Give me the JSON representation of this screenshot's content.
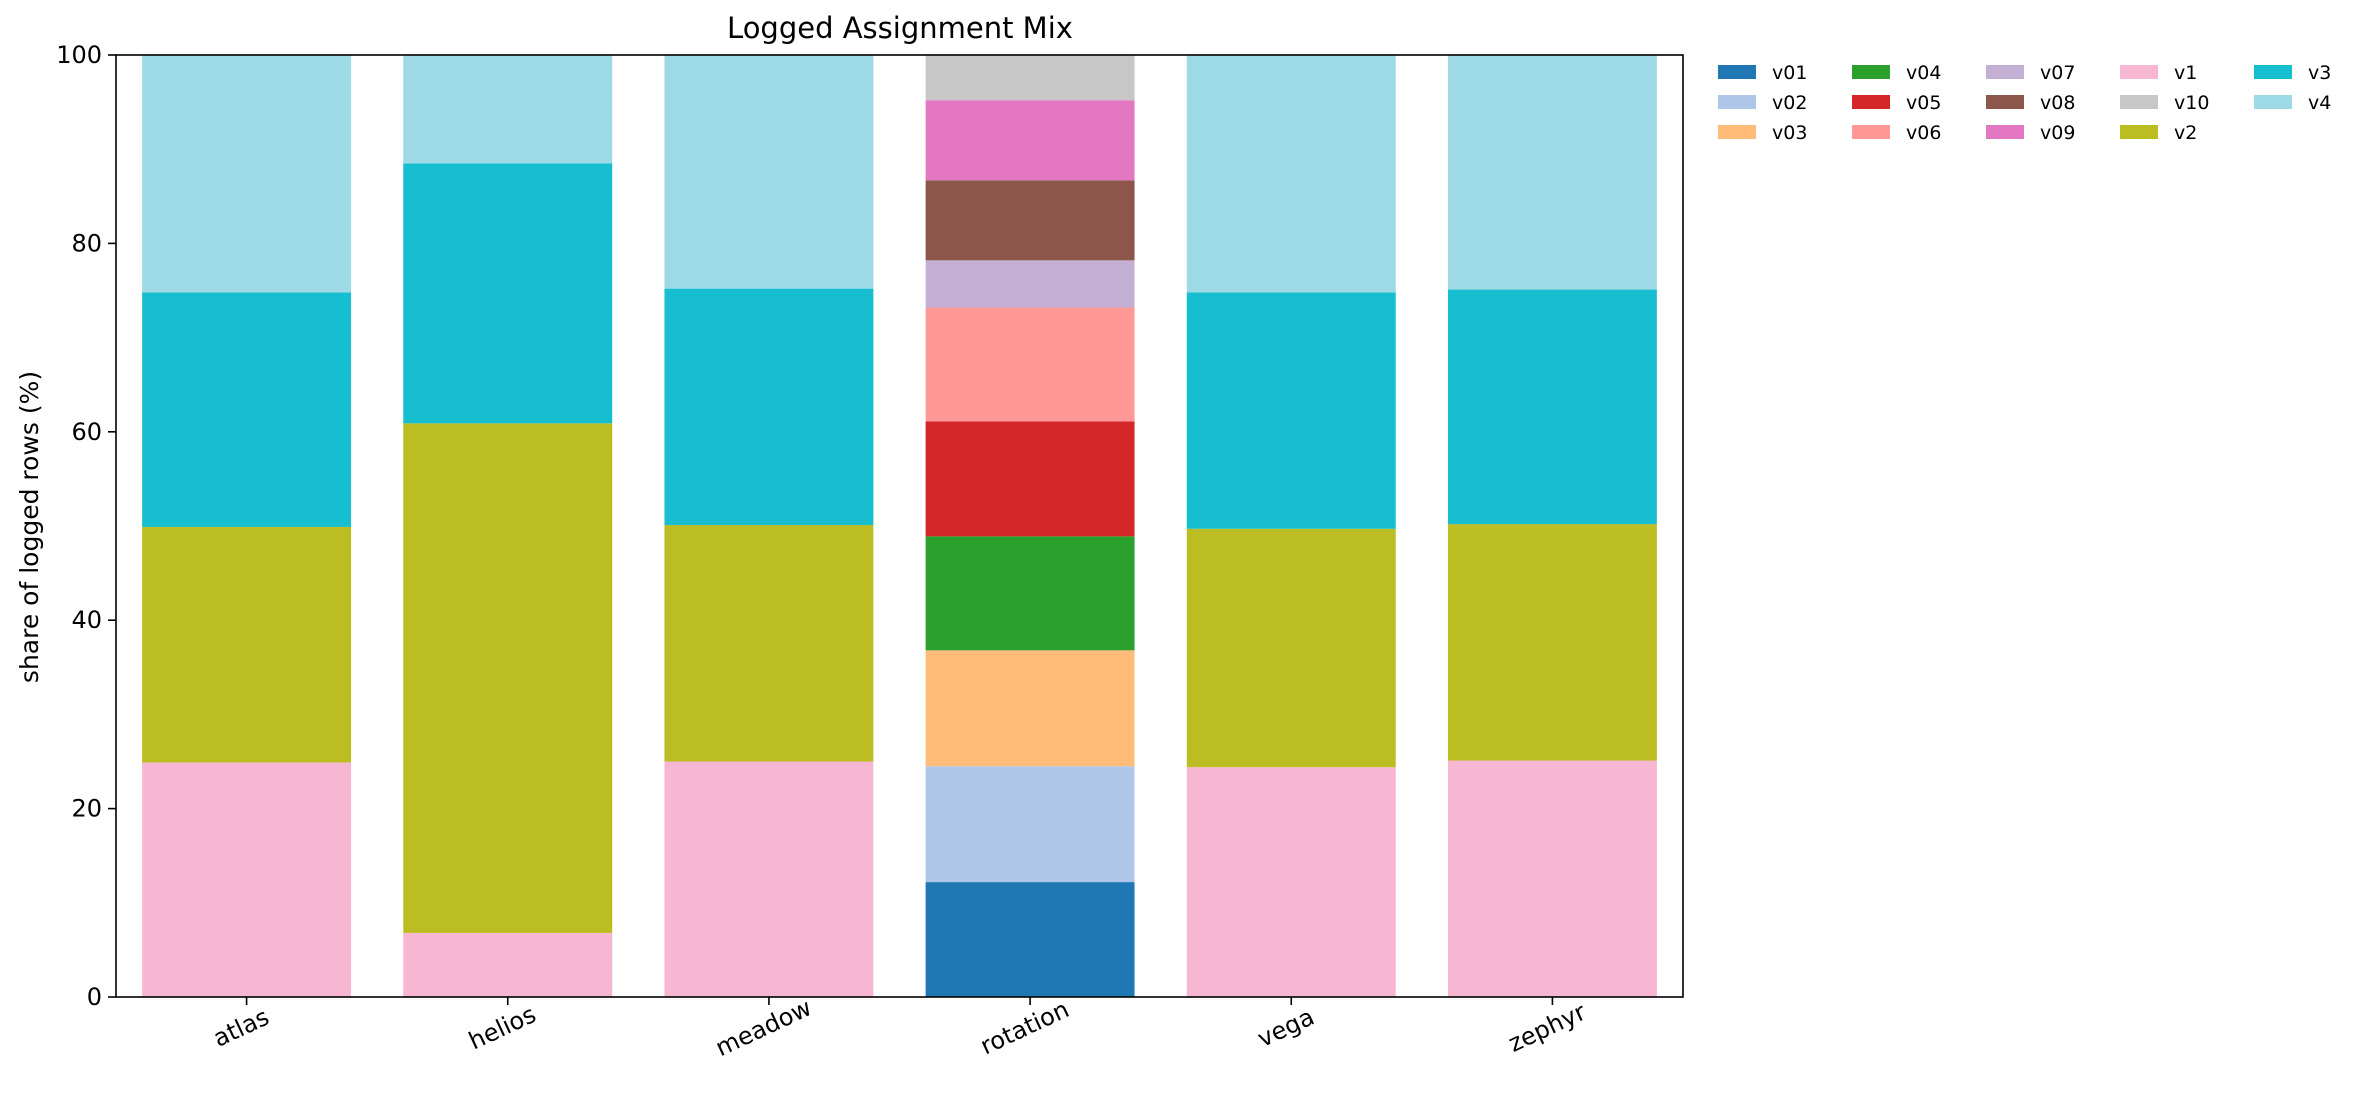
{
  "chart_data": {
    "type": "bar",
    "stacked": true,
    "title": "Logged Assignment Mix",
    "xlabel": "",
    "ylabel": "share of logged rows (%)",
    "ylim": [
      0,
      100
    ],
    "yticks": [
      "0",
      "20",
      "40",
      "60",
      "80",
      "100"
    ],
    "grid": false,
    "legend_position": "top-right, outside plot",
    "categories": [
      "atlas",
      "helios",
      "meadow",
      "rotation",
      "vega",
      "zephyr"
    ],
    "series": [
      {
        "name": "v01",
        "color": "#1f77b4",
        "values": [
          0,
          0,
          0,
          12.2,
          0,
          0
        ]
      },
      {
        "name": "v02",
        "color": "#aec7e8",
        "values": [
          0,
          0,
          0,
          12.3,
          0,
          0
        ]
      },
      {
        "name": "v03",
        "color": "#ffbb78",
        "values": [
          0,
          0,
          0,
          12.3,
          0,
          0
        ]
      },
      {
        "name": "v04",
        "color": "#2ca02c",
        "values": [
          0,
          0,
          0,
          12.1,
          0,
          0
        ]
      },
      {
        "name": "v05",
        "color": "#d62728",
        "values": [
          0,
          0,
          0,
          12.2,
          0,
          0
        ]
      },
      {
        "name": "v06",
        "color": "#ff9896",
        "values": [
          0,
          0,
          0,
          12.1,
          0,
          0
        ]
      },
      {
        "name": "v07",
        "color": "#c5b0d5",
        "values": [
          0,
          0,
          0,
          5.0,
          0,
          0
        ]
      },
      {
        "name": "v08",
        "color": "#8c564b",
        "values": [
          0,
          0,
          0,
          8.5,
          0,
          0
        ]
      },
      {
        "name": "v09",
        "color": "#e377c2",
        "values": [
          0,
          0,
          0,
          8.5,
          0,
          0
        ]
      },
      {
        "name": "v1",
        "color": "#f7b6d2",
        "values": [
          24.9,
          6.8,
          25.0,
          0,
          24.4,
          25.1
        ]
      },
      {
        "name": "v10",
        "color": "#c7c7c7",
        "values": [
          0,
          0,
          0,
          4.8,
          0,
          0
        ]
      },
      {
        "name": "v2",
        "color": "#bcbd22",
        "values": [
          25.0,
          54.1,
          25.1,
          0,
          25.3,
          25.1
        ]
      },
      {
        "name": "v3",
        "color": "#17becf",
        "values": [
          24.9,
          27.6,
          25.1,
          0,
          25.1,
          24.9
        ]
      },
      {
        "name": "v4",
        "color": "#9edae5",
        "values": [
          25.2,
          11.5,
          24.8,
          0,
          25.2,
          24.9
        ]
      }
    ]
  }
}
